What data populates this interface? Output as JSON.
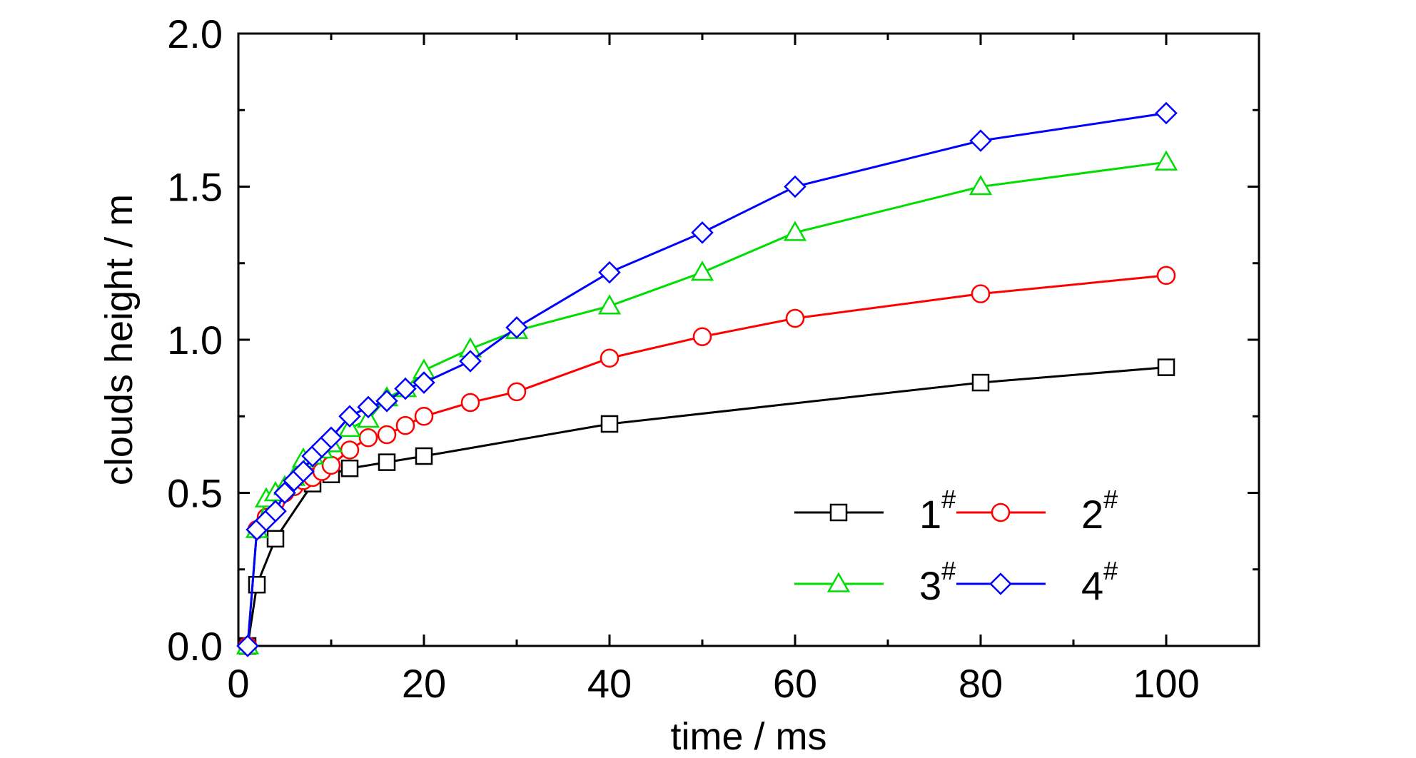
{
  "chart_data": {
    "type": "line",
    "title": "",
    "xlabel": "time / ms",
    "ylabel": "clouds height / m",
    "xlim": [
      0,
      110
    ],
    "ylim": [
      0,
      2.0
    ],
    "xticks": [
      0,
      20,
      40,
      60,
      80,
      100
    ],
    "xtick_labels": [
      "0",
      "20",
      "40",
      "60",
      "80",
      "100"
    ],
    "yticks": [
      0,
      0.5,
      1.0,
      1.5,
      2.0
    ],
    "ytick_labels": [
      "0.0",
      "0.5",
      "1.0",
      "1.5",
      "2.0"
    ],
    "grid": false,
    "legend": {
      "placement": "bottom-right",
      "columns": 2
    },
    "series": [
      {
        "name": "1",
        "name_sup": "#",
        "color": "#000000",
        "marker": "square",
        "x": [
          1,
          2,
          4,
          8,
          10,
          12,
          16,
          20,
          40,
          80,
          100
        ],
        "y": [
          0.0,
          0.2,
          0.35,
          0.53,
          0.56,
          0.58,
          0.6,
          0.62,
          0.725,
          0.86,
          0.91
        ]
      },
      {
        "name": "2",
        "name_sup": "#",
        "color": "#ff0000",
        "marker": "circle",
        "x": [
          1,
          2,
          3,
          4,
          5,
          6,
          7,
          8,
          9,
          10,
          12,
          14,
          16,
          18,
          20,
          25,
          30,
          40,
          50,
          60,
          80,
          100
        ],
        "y": [
          0.0,
          0.38,
          0.42,
          0.47,
          0.5,
          0.52,
          0.54,
          0.55,
          0.57,
          0.59,
          0.64,
          0.68,
          0.69,
          0.72,
          0.75,
          0.795,
          0.83,
          0.94,
          1.01,
          1.07,
          1.15,
          1.21
        ]
      },
      {
        "name": "3",
        "name_sup": "#",
        "color": "#00dd00",
        "marker": "triangle",
        "x": [
          1,
          2,
          3,
          4,
          5,
          6,
          7,
          8,
          9,
          10,
          12,
          14,
          16,
          18,
          20,
          25,
          30,
          40,
          50,
          60,
          80,
          100
        ],
        "y": [
          0.0,
          0.38,
          0.48,
          0.5,
          0.52,
          0.55,
          0.61,
          0.62,
          0.64,
          0.66,
          0.71,
          0.74,
          0.81,
          0.84,
          0.9,
          0.97,
          1.03,
          1.11,
          1.22,
          1.35,
          1.5,
          1.58
        ]
      },
      {
        "name": "4",
        "name_sup": "#",
        "color": "#0000ff",
        "marker": "diamond",
        "x": [
          1,
          2,
          3,
          4,
          5,
          6,
          7,
          8,
          9,
          10,
          12,
          14,
          16,
          18,
          20,
          25,
          30,
          40,
          50,
          60,
          80,
          100
        ],
        "y": [
          0.0,
          0.38,
          0.41,
          0.44,
          0.5,
          0.54,
          0.57,
          0.62,
          0.65,
          0.68,
          0.75,
          0.78,
          0.8,
          0.84,
          0.86,
          0.93,
          1.04,
          1.22,
          1.35,
          1.5,
          1.65,
          1.74
        ]
      }
    ]
  }
}
